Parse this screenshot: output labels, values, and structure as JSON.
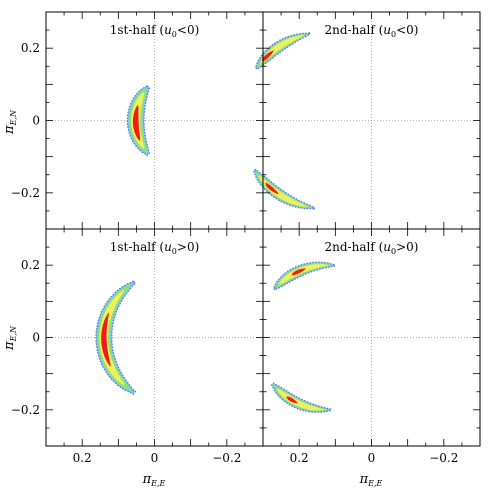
{
  "chart_data": [
    {
      "type": "scatter",
      "title": "1st-half (u0<0)",
      "title_main": "1st-half (",
      "title_var": "u",
      "title_sub": "0",
      "title_cond": "<0)",
      "xlim": [
        0.3,
        -0.3
      ],
      "ylim": [
        -0.3,
        0.3
      ],
      "xticks": [
        0.2,
        0,
        -0.2
      ],
      "yticks": [
        0.2,
        0,
        -0.2
      ],
      "ytick_labels": [
        "0.2",
        "0",
        "−0.2"
      ],
      "show_xtick_labels": false,
      "show_ytick_labels": true,
      "reference_lines": {
        "x": 0,
        "y": 0,
        "style": "dotted"
      },
      "contours": [
        {
          "shape": "arc",
          "cx": -0.09,
          "cy": 0.0,
          "r": 0.142,
          "a0": 41,
          "a1": -41,
          "w": 0.046,
          "aa0": 17,
          "aa1": -23,
          "sc0": 1.0,
          "sc1": 1.0
        }
      ]
    },
    {
      "type": "scatter",
      "title": "2nd-half (u0<0)",
      "title_main": "2nd-half (",
      "title_var": "u",
      "title_sub": "0",
      "title_cond": "<0)",
      "xlim": [
        0.3,
        -0.3
      ],
      "ylim": [
        -0.3,
        0.3
      ],
      "xticks": [
        0.2,
        0,
        -0.2
      ],
      "yticks": [
        0.2,
        0,
        -0.2
      ],
      "show_xtick_labels": false,
      "show_ytick_labels": false,
      "reference_lines": {
        "x": 0,
        "y": 0,
        "style": "dotted"
      },
      "contours": [
        {
          "shape": "arc",
          "cx": 0.12,
          "cy": 0.0,
          "r": 0.245,
          "a0": 78,
          "a1": 36,
          "w": 0.036,
          "aa0": 52,
          "aa1": 42,
          "sc0": 0.6,
          "sc1": 1.0
        },
        {
          "shape": "arc",
          "cx": 0.12,
          "cy": 0.0,
          "r": 0.245,
          "a0": -81,
          "a1": -34,
          "w": 0.036,
          "aa0": -56,
          "aa1": -45,
          "sc0": 0.6,
          "sc1": 1.0
        }
      ]
    },
    {
      "type": "scatter",
      "title": "1st-half (u0>0)",
      "title_main": "1st-half (",
      "title_var": "u",
      "title_sub": "0",
      "title_cond": ">0)",
      "xlim": [
        0.3,
        -0.3
      ],
      "ylim": [
        -0.3,
        0.3
      ],
      "xticks": [
        0.2,
        0,
        -0.2
      ],
      "yticks": [
        0.2,
        0,
        -0.2
      ],
      "xtick_labels": [
        "0.2",
        "0",
        "−0.2"
      ],
      "ytick_labels": [
        "0.2",
        "0",
        "−0.2"
      ],
      "show_xtick_labels": true,
      "show_ytick_labels": true,
      "xlabel": "π_E,E",
      "ylabel": "π_E,N",
      "reference_lines": {
        "x": 0,
        "y": 0,
        "style": "dotted"
      },
      "contours": [
        {
          "shape": "arc",
          "cx": -0.04,
          "cy": 0.0,
          "r": 0.18,
          "a0": 58,
          "a1": -58,
          "w": 0.046,
          "aa0": 22,
          "aa1": -26,
          "sc0": 0.9,
          "sc1": 1.0
        }
      ]
    },
    {
      "type": "scatter",
      "title": "2nd-half (u0>0)",
      "title_main": "2nd-half (",
      "title_var": "u",
      "title_sub": "0",
      "title_cond": ">0)",
      "xlim": [
        0.3,
        -0.3
      ],
      "ylim": [
        -0.3,
        0.3
      ],
      "xticks": [
        0.2,
        0,
        -0.2
      ],
      "yticks": [
        0.2,
        0,
        -0.2
      ],
      "xtick_labels": [
        "0.2",
        "0",
        "−0.2"
      ],
      "show_xtick_labels": true,
      "show_ytick_labels": false,
      "xlabel": "π_E,E",
      "reference_lines": {
        "x": 0,
        "y": 0,
        "style": "dotted"
      },
      "contours": [
        {
          "shape": "arc",
          "cx": 0.12,
          "cy": 0.0,
          "r": 0.2,
          "a0": 95,
          "a1": 42,
          "w": 0.036,
          "aa0": 72,
          "aa1": 60,
          "sc0": 0.6,
          "sc1": 1.0
        },
        {
          "shape": "arc",
          "cx": 0.12,
          "cy": 0.0,
          "r": 0.2,
          "a0": -92,
          "a1": -40,
          "w": 0.036,
          "aa0": -65,
          "aa1": -55,
          "sc0": 0.6,
          "sc1": 1.0
        }
      ]
    }
  ],
  "contour_colors": [
    "#4f6fd8",
    "#7ec6ee",
    "#8fe070",
    "#eef060",
    "#ee1c1c"
  ],
  "axis_labels": {
    "ylabel_main": "π",
    "ylabel_sub": "E,N",
    "xlabel_main": "π",
    "xlabel_sub": "E,E"
  }
}
